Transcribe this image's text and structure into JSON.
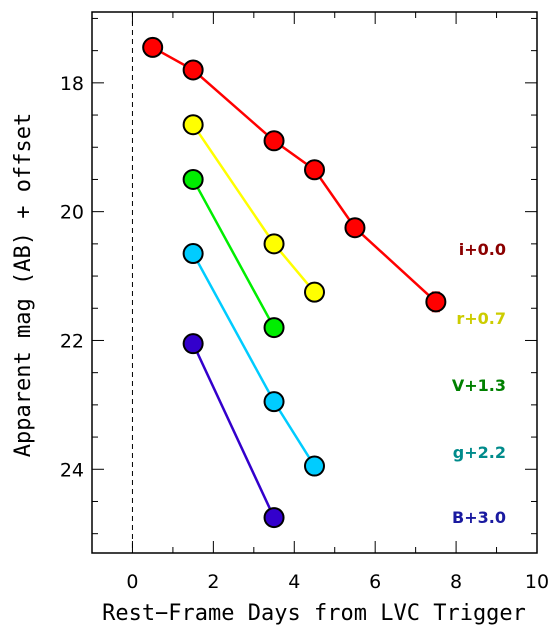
{
  "chart_data": {
    "type": "scatter",
    "xlabel": "Rest−Frame Days from LVC Trigger",
    "ylabel": "Apparent mag (AB) + offset",
    "xlim": [
      -1,
      10
    ],
    "ylim": [
      25.3,
      16.9
    ],
    "y_inverted": true,
    "x_ticks": [
      0,
      2,
      4,
      6,
      8,
      10
    ],
    "y_ticks": [
      18,
      20,
      22,
      24
    ],
    "trigger_line_x": 0,
    "grid": false,
    "legend": "right side labels",
    "series": [
      {
        "name": "i+0.0",
        "color": "#ff0000",
        "label_color": "#8b0000",
        "x": [
          0.5,
          1.5,
          3.5,
          4.5,
          5.5,
          7.5
        ],
        "y": [
          17.45,
          17.8,
          18.9,
          19.35,
          20.25,
          21.4
        ],
        "yerr": [
          0,
          0,
          0,
          0,
          0,
          0.15
        ]
      },
      {
        "name": "r+0.7",
        "color": "#ffff00",
        "label_color": "#cccc00",
        "x": [
          1.5,
          3.5,
          4.5
        ],
        "y": [
          18.65,
          20.5,
          21.25
        ]
      },
      {
        "name": "V+1.3",
        "color": "#00ee00",
        "label_color": "#008000",
        "x": [
          1.5,
          3.5
        ],
        "y": [
          19.5,
          21.8
        ]
      },
      {
        "name": "g+2.2",
        "color": "#00ccff",
        "label_color": "#008b8b",
        "x": [
          1.5,
          3.5,
          4.5
        ],
        "y": [
          20.65,
          22.95,
          23.95
        ]
      },
      {
        "name": "B+3.0",
        "color": "#3300cc",
        "label_color": "#1a1aa0",
        "x": [
          1.5,
          3.5
        ],
        "y": [
          22.05,
          24.75
        ]
      }
    ]
  }
}
